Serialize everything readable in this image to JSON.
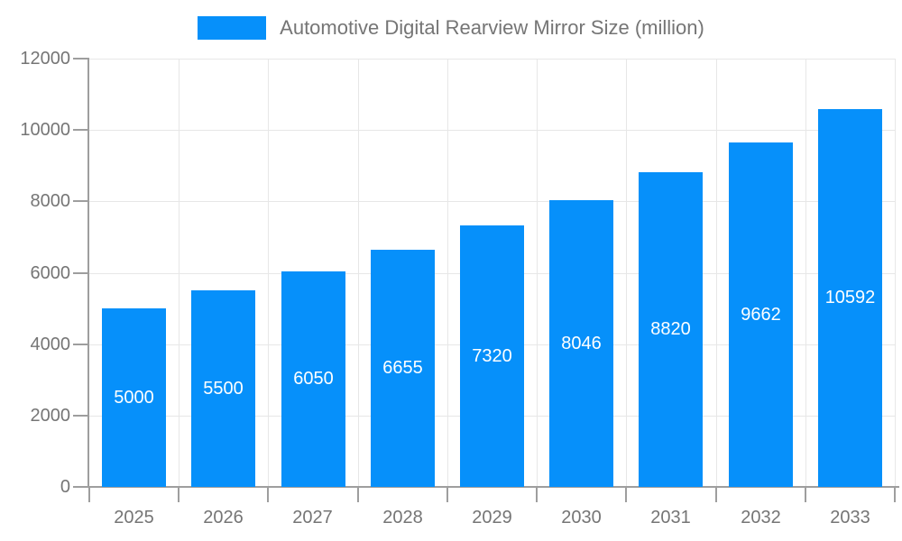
{
  "chart_data": {
    "type": "bar",
    "title": "Automotive Digital Rearview Mirror Size (million)",
    "legend": {
      "position": "top",
      "entries": [
        "Automotive Digital Rearview Mirror Size (million)"
      ]
    },
    "categories": [
      "2025",
      "2026",
      "2027",
      "2028",
      "2029",
      "2030",
      "2031",
      "2032",
      "2033"
    ],
    "values": [
      5000,
      5500,
      6050,
      6655,
      7320,
      8046,
      8820,
      9662,
      10592
    ],
    "value_labels": [
      "5000",
      "5500",
      "6050",
      "6655",
      "7320",
      "8046",
      "8820",
      "9662",
      "10592"
    ],
    "value_label_position": "inside-center",
    "xlabel": "",
    "ylabel": "",
    "ylim": [
      0,
      12000
    ],
    "y_ticks": [
      0,
      2000,
      4000,
      6000,
      8000,
      10000,
      12000
    ],
    "y_tick_labels": [
      "0",
      "2000",
      "4000",
      "6000",
      "8000",
      "10000",
      "12000"
    ],
    "grid": true,
    "colors": {
      "bar": "#0690FA",
      "grid": "#e7e7e7",
      "axis": "#9e9e9e",
      "tick_text": "#757575",
      "legend_text": "#757575",
      "value_text": "#ffffff",
      "background": "#ffffff"
    }
  }
}
